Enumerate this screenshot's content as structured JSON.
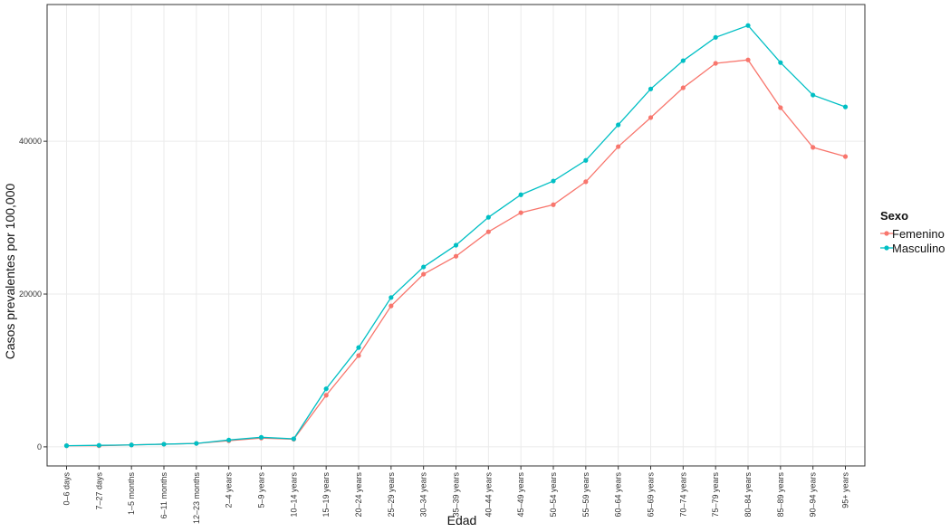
{
  "chart_data": {
    "type": "line",
    "x_label": "Edad",
    "y_label": "Casos prevalentes  por 100,000",
    "legend_title": "Sexo",
    "legend_position": "right",
    "grid": true,
    "categories": [
      "0–6 days",
      "7–27 days",
      "1–5 months",
      "6–11 months",
      "12–23 months",
      "2–4 years",
      "5–9 years",
      "10–14 years",
      "15–19 years",
      "20–24 years",
      "25–29 years",
      "30–34 years",
      "35–39 years",
      "40–44 years",
      "45–49 years",
      "50–54 years",
      "55–59 years",
      "60–64 years",
      "65–69 years",
      "70–74 years",
      "75–79 years",
      "80–84 years",
      "85–89 years",
      "90–94 years",
      "95+ years"
    ],
    "ylim": [
      -2500,
      57900
    ],
    "yticks": [
      0,
      20000,
      40000
    ],
    "series": [
      {
        "name": "Femenino",
        "color": "#F8766D",
        "values": [
          150,
          150,
          250,
          350,
          450,
          800,
          1150,
          1000,
          6750,
          11950,
          18450,
          22600,
          24950,
          28150,
          30650,
          31700,
          34700,
          39300,
          43100,
          47000,
          50200,
          50650,
          44400,
          39200,
          38000
        ]
      },
      {
        "name": "Masculino",
        "color": "#00BFC4",
        "values": [
          150,
          200,
          250,
          350,
          450,
          900,
          1250,
          1050,
          7600,
          13000,
          19550,
          23550,
          26400,
          30050,
          33000,
          34800,
          37500,
          42150,
          46850,
          50550,
          53600,
          55150,
          50300,
          46050,
          44500
        ]
      }
    ]
  }
}
